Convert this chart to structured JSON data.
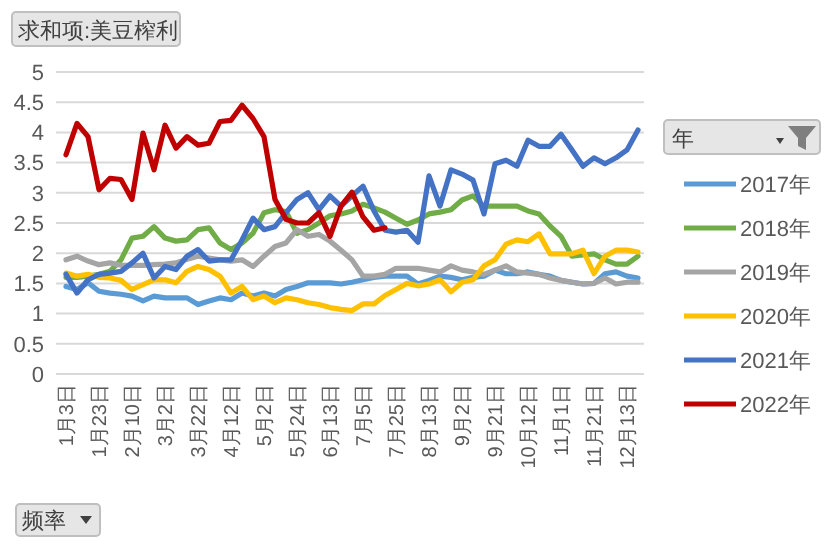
{
  "chart_data": {
    "type": "line",
    "title": "求和项:美豆榨利",
    "legend_title": "年",
    "annotations": [
      "频率"
    ],
    "categories": [
      "1月3日",
      null,
      null,
      "1月23日",
      null,
      null,
      "2月10日",
      null,
      null,
      "3月2日",
      null,
      null,
      "3月22日",
      null,
      null,
      "4月12日",
      null,
      null,
      "5月2日",
      null,
      null,
      "5月24日",
      null,
      null,
      "6月13日",
      null,
      null,
      "7月5日",
      null,
      null,
      "7月25日",
      null,
      null,
      "8月13日",
      null,
      null,
      "9月2日",
      null,
      null,
      "9月21日",
      null,
      null,
      "10月12日",
      null,
      null,
      "11月1日",
      null,
      null,
      "11月21日",
      null,
      null,
      "12月13日",
      null
    ],
    "series": [
      {
        "name": "2017年",
        "color": "#5b9bd5",
        "values": [
          1.45,
          1.4,
          1.51,
          1.37,
          1.34,
          1.32,
          1.29,
          1.21,
          1.29,
          1.26,
          1.26,
          1.26,
          1.15,
          1.21,
          1.26,
          1.23,
          1.34,
          1.29,
          1.34,
          1.29,
          1.4,
          1.45,
          1.51,
          1.51,
          1.51,
          1.49,
          1.52,
          1.56,
          1.6,
          1.62,
          1.62,
          1.62,
          1.49,
          1.55,
          1.62,
          1.6,
          1.56,
          1.6,
          1.62,
          1.72,
          1.66,
          1.66,
          1.69,
          1.65,
          1.62,
          1.55,
          1.52,
          1.49,
          1.5,
          1.66,
          1.69,
          1.62,
          1.59
        ]
      },
      {
        "name": "2018年",
        "color": "#70ad47",
        "values": [
          1.6,
          1.6,
          1.62,
          1.65,
          1.7,
          1.89,
          2.25,
          2.28,
          2.44,
          2.25,
          2.2,
          2.22,
          2.39,
          2.42,
          2.17,
          2.06,
          2.17,
          2.33,
          2.67,
          2.72,
          2.69,
          2.33,
          2.39,
          2.5,
          2.62,
          2.65,
          2.7,
          2.81,
          2.75,
          2.68,
          2.58,
          2.48,
          2.55,
          2.65,
          2.68,
          2.72,
          2.88,
          2.95,
          2.78,
          2.78,
          2.78,
          2.78,
          2.7,
          2.65,
          2.45,
          2.28,
          1.95,
          1.97,
          1.99,
          1.89,
          1.82,
          1.82,
          1.95
        ]
      },
      {
        "name": "2019年",
        "color": "#a5a5a5",
        "values": [
          1.89,
          1.95,
          1.87,
          1.81,
          1.84,
          1.8,
          1.8,
          1.8,
          1.81,
          1.82,
          1.84,
          1.9,
          1.95,
          1.92,
          1.89,
          1.87,
          1.89,
          1.78,
          1.95,
          2.11,
          2.17,
          2.39,
          2.28,
          2.31,
          2.2,
          2.05,
          1.89,
          1.62,
          1.62,
          1.65,
          1.75,
          1.75,
          1.75,
          1.72,
          1.69,
          1.79,
          1.72,
          1.69,
          1.65,
          1.72,
          1.79,
          1.69,
          1.67,
          1.65,
          1.59,
          1.55,
          1.52,
          1.49,
          1.5,
          1.59,
          1.49,
          1.52,
          1.52
        ]
      },
      {
        "name": "2020年",
        "color": "#ffc000",
        "values": [
          1.67,
          1.62,
          1.65,
          1.6,
          1.59,
          1.55,
          1.4,
          1.48,
          1.56,
          1.56,
          1.51,
          1.7,
          1.78,
          1.73,
          1.62,
          1.34,
          1.45,
          1.23,
          1.29,
          1.18,
          1.26,
          1.23,
          1.18,
          1.15,
          1.1,
          1.07,
          1.05,
          1.16,
          1.16,
          1.3,
          1.4,
          1.5,
          1.46,
          1.49,
          1.56,
          1.36,
          1.52,
          1.56,
          1.79,
          1.89,
          2.15,
          2.22,
          2.19,
          2.32,
          1.99,
          1.99,
          1.99,
          2.05,
          1.66,
          1.95,
          2.05,
          2.05,
          2.02
        ]
      },
      {
        "name": "2021年",
        "color": "#4472c4",
        "values": [
          1.65,
          1.34,
          1.56,
          1.65,
          1.67,
          1.7,
          1.84,
          2.0,
          1.59,
          1.78,
          1.73,
          1.95,
          2.06,
          1.87,
          1.89,
          1.89,
          2.22,
          2.58,
          2.39,
          2.44,
          2.67,
          2.89,
          3.0,
          2.72,
          2.95,
          2.78,
          2.95,
          3.11,
          2.7,
          2.38,
          2.35,
          2.38,
          2.18,
          3.28,
          2.78,
          3.38,
          3.31,
          3.21,
          2.65,
          3.48,
          3.54,
          3.44,
          3.87,
          3.77,
          3.77,
          3.97,
          3.71,
          3.44,
          3.58,
          3.48,
          3.58,
          3.71,
          4.04
        ]
      },
      {
        "name": "2022年",
        "color": "#c00000",
        "values": [
          3.63,
          4.15,
          3.93,
          3.05,
          3.24,
          3.22,
          2.89,
          3.99,
          3.38,
          4.12,
          3.74,
          3.93,
          3.79,
          3.82,
          4.18,
          4.2,
          4.45,
          4.23,
          3.93,
          2.89,
          2.56,
          2.5,
          2.5,
          2.67,
          2.28,
          2.78,
          3.01,
          2.6,
          2.38,
          2.42,
          null,
          null,
          null,
          null,
          null,
          null,
          null,
          null,
          null,
          null,
          null,
          null,
          null,
          null,
          null,
          null,
          null,
          null,
          null,
          null,
          null,
          null,
          null
        ]
      }
    ],
    "ylim": [
      0,
      5
    ],
    "yticks": [
      0,
      0.5,
      1,
      1.5,
      2,
      2.5,
      3,
      3.5,
      4,
      4.5,
      5
    ],
    "grid": "y",
    "legend": "right",
    "marker": "none",
    "line_style": "solid"
  }
}
